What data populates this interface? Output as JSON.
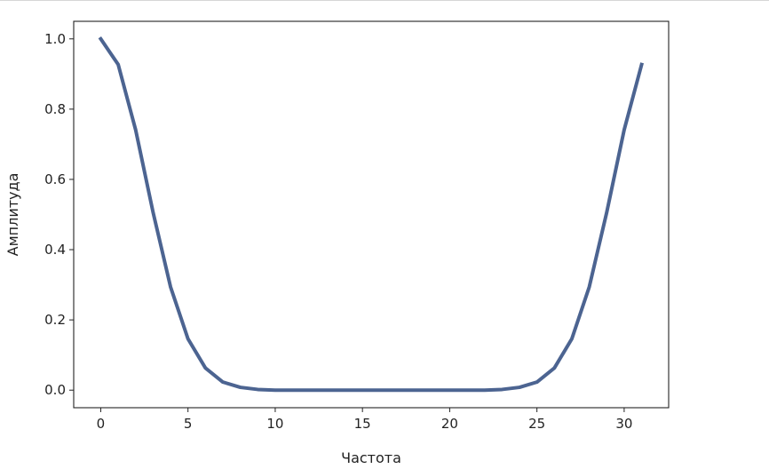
{
  "chart_data": {
    "type": "line",
    "xlabel": "Частота",
    "ylabel": "Амплитуда",
    "xlim": [
      -1.55,
      32.55
    ],
    "ylim": [
      -0.05,
      1.05
    ],
    "grid": false,
    "x_ticks": [
      0,
      5,
      10,
      15,
      20,
      25,
      30
    ],
    "y_ticks": [
      0.0,
      0.2,
      0.4,
      0.6,
      0.8,
      1.0
    ],
    "y_tick_labels": [
      "0.0",
      "0.2",
      "0.4",
      "0.6",
      "0.8",
      "1.0"
    ],
    "series": [
      {
        "color": "#4c6491",
        "x": [
          0,
          1,
          2,
          3,
          4,
          5,
          6,
          7,
          8,
          9,
          10,
          11,
          12,
          13,
          14,
          15,
          16,
          17,
          18,
          19,
          20,
          21,
          22,
          23,
          24,
          25,
          26,
          27,
          28,
          29,
          30,
          31
        ],
        "y": [
          1.0,
          0.927,
          0.741,
          0.506,
          0.294,
          0.146,
          0.063,
          0.023,
          0.008,
          0.002,
          0.0,
          0.0,
          0.0,
          0.0,
          0.0,
          0.0,
          0.0,
          0.0,
          0.0,
          0.0,
          0.0,
          0.0,
          0.0,
          0.002,
          0.008,
          0.023,
          0.063,
          0.146,
          0.294,
          0.506,
          0.741,
          0.927
        ]
      }
    ]
  }
}
